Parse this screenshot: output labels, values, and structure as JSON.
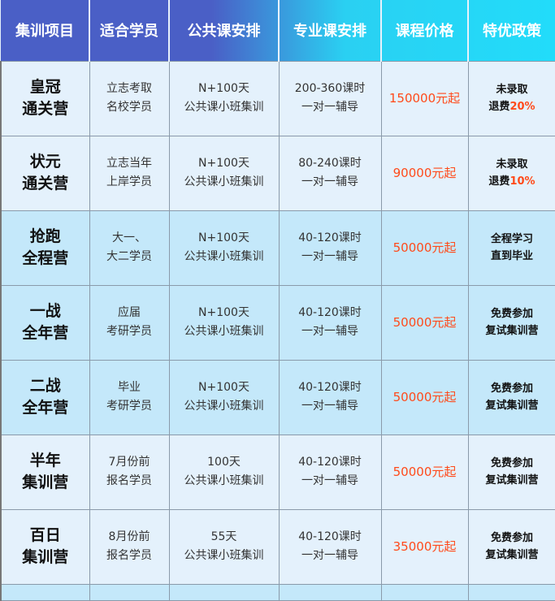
{
  "headers": [
    "集训项目",
    "适合学员",
    "公共课安排",
    "专业课安排",
    "课程价格",
    "特优政策"
  ],
  "rows": [
    {
      "name": [
        "皇冠",
        "通关营"
      ],
      "audience": [
        "立志考取",
        "名校学员"
      ],
      "public": [
        "N+100天",
        "公共课小班集训"
      ],
      "pro": [
        "200-360课时",
        "一对一辅导"
      ],
      "price": "150000元起",
      "policy": [
        "未录取",
        "退费",
        "20%"
      ]
    },
    {
      "name": [
        "状元",
        "通关营"
      ],
      "audience": [
        "立志当年",
        "上岸学员"
      ],
      "public": [
        "N+100天",
        "公共课小班集训"
      ],
      "pro": [
        "80-240课时",
        "一对一辅导"
      ],
      "price": "90000元起",
      "policy": [
        "未录取",
        "退费",
        "10%"
      ]
    },
    {
      "name": [
        "抢跑",
        "全程营"
      ],
      "audience": [
        "大一、",
        "大二学员"
      ],
      "public": [
        "N+100天",
        "公共课小班集训"
      ],
      "pro": [
        "40-120课时",
        "一对一辅导"
      ],
      "price": "50000元起",
      "policy": [
        "全程学习",
        "直到毕业",
        ""
      ]
    },
    {
      "name": [
        "一战",
        "全年营"
      ],
      "audience": [
        "应届",
        "考研学员"
      ],
      "public": [
        "N+100天",
        "公共课小班集训"
      ],
      "pro": [
        "40-120课时",
        "一对一辅导"
      ],
      "price": "50000元起",
      "policy": [
        "免费参加",
        "复试集训营",
        ""
      ]
    },
    {
      "name": [
        "二战",
        "全年营"
      ],
      "audience": [
        "毕业",
        "考研学员"
      ],
      "public": [
        "N+100天",
        "公共课小班集训"
      ],
      "pro": [
        "40-120课时",
        "一对一辅导"
      ],
      "price": "50000元起",
      "policy": [
        "免费参加",
        "复试集训营",
        ""
      ]
    },
    {
      "name": [
        "半年",
        "集训营"
      ],
      "audience": [
        "7月份前",
        "报名学员"
      ],
      "public": [
        "100天",
        "公共课小班集训"
      ],
      "pro": [
        "40-120课时",
        "一对一辅导"
      ],
      "price": "50000元起",
      "policy": [
        "免费参加",
        "复试集训营",
        ""
      ]
    },
    {
      "name": [
        "百日",
        "集训营"
      ],
      "audience": [
        "8月份前",
        "报名学员"
      ],
      "public": [
        "55天",
        "公共课小班集训"
      ],
      "pro": [
        "40-120课时",
        "一对一辅导"
      ],
      "price": "35000元起",
      "policy": [
        "免费参加",
        "复试集训营",
        ""
      ]
    }
  ],
  "colors": {
    "header_start": "#4a5fc6",
    "header_end": "#22dcfa",
    "price": "#ff4a1a",
    "row_light": "#e4f1fc",
    "row_dark": "#c4e8fa"
  }
}
